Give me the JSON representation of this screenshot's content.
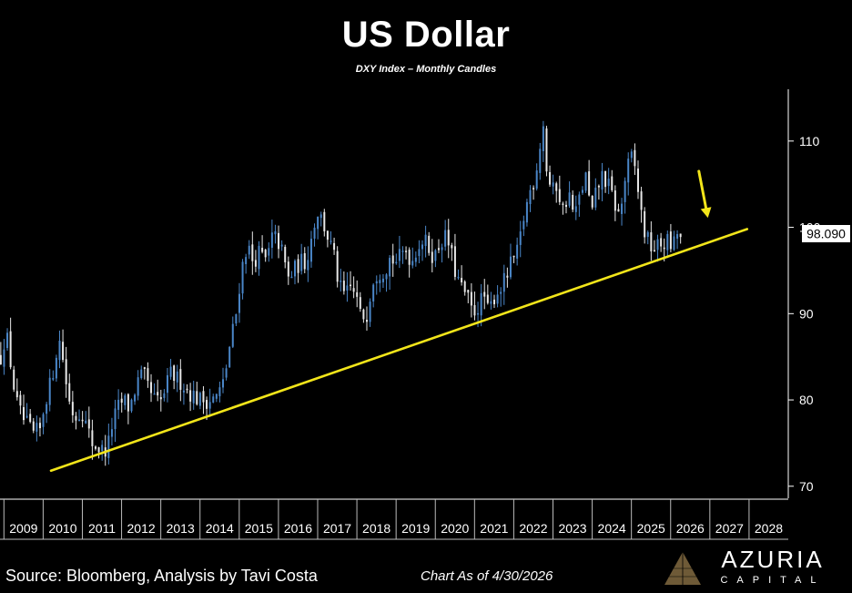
{
  "header": {
    "title": "US Dollar",
    "subtitle": "DXY Index – Monthly Candles"
  },
  "footer": {
    "source": "Source: Bloomberg, Analysis by Tavi Costa",
    "as_of": "Chart As of 4/30/2026"
  },
  "brand": {
    "name": "AZURIA",
    "tagline": "CAPITAL"
  },
  "chart_data": {
    "type": "candlestick",
    "x_tick_labels": [
      "2009",
      "2010",
      "2011",
      "2012",
      "2013",
      "2014",
      "2015",
      "2016",
      "2017",
      "2018",
      "2019",
      "2020",
      "2021",
      "2022",
      "2023",
      "2024",
      "2025",
      "2026",
      "2027",
      "2028"
    ],
    "y_ticks": [
      70,
      80,
      90,
      100,
      110
    ],
    "ylim": [
      68.5,
      116
    ],
    "xlim": [
      2008.9,
      2029.0
    ],
    "last_price": "98.090",
    "colors": {
      "up": "#4a86c8",
      "down": "#e8e8e8",
      "trendline": "#f2e51a",
      "arrow": "#f2e51a",
      "background": "#000000"
    },
    "close_path": [
      [
        2008.92,
        85
      ],
      [
        2009.05,
        88
      ],
      [
        2009.18,
        84
      ],
      [
        2009.3,
        80
      ],
      [
        2009.45,
        78
      ],
      [
        2009.6,
        77
      ],
      [
        2009.75,
        76
      ],
      [
        2009.92,
        76.5
      ],
      [
        2010.05,
        80
      ],
      [
        2010.2,
        82
      ],
      [
        2010.35,
        86
      ],
      [
        2010.45,
        87
      ],
      [
        2010.55,
        83
      ],
      [
        2010.7,
        79
      ],
      [
        2010.85,
        78
      ],
      [
        2010.98,
        79
      ],
      [
        2011.1,
        77
      ],
      [
        2011.25,
        75
      ],
      [
        2011.4,
        74.5
      ],
      [
        2011.55,
        74
      ],
      [
        2011.65,
        74.5
      ],
      [
        2011.75,
        77
      ],
      [
        2011.9,
        79
      ],
      [
        2012.05,
        80
      ],
      [
        2012.2,
        79
      ],
      [
        2012.4,
        82
      ],
      [
        2012.55,
        83
      ],
      [
        2012.7,
        81
      ],
      [
        2012.85,
        80
      ],
      [
        2012.98,
        79.5
      ],
      [
        2013.1,
        81
      ],
      [
        2013.25,
        83
      ],
      [
        2013.4,
        82.5
      ],
      [
        2013.55,
        82
      ],
      [
        2013.7,
        81
      ],
      [
        2013.85,
        80.5
      ],
      [
        2013.98,
        80
      ],
      [
        2014.1,
        80
      ],
      [
        2014.3,
        80
      ],
      [
        2014.45,
        80.5
      ],
      [
        2014.6,
        82
      ],
      [
        2014.75,
        86
      ],
      [
        2014.92,
        90
      ],
      [
        2015.05,
        95
      ],
      [
        2015.2,
        98
      ],
      [
        2015.35,
        96
      ],
      [
        2015.5,
        97
      ],
      [
        2015.7,
        96
      ],
      [
        2015.85,
        99
      ],
      [
        2015.98,
        98.5
      ],
      [
        2016.1,
        97
      ],
      [
        2016.25,
        94
      ],
      [
        2016.4,
        95
      ],
      [
        2016.55,
        96
      ],
      [
        2016.7,
        96
      ],
      [
        2016.85,
        99
      ],
      [
        2016.98,
        102
      ],
      [
        2017.1,
        101
      ],
      [
        2017.25,
        99
      ],
      [
        2017.4,
        97
      ],
      [
        2017.55,
        93
      ],
      [
        2017.7,
        92
      ],
      [
        2017.85,
        93
      ],
      [
        2017.98,
        92
      ],
      [
        2018.1,
        89.5
      ],
      [
        2018.25,
        90
      ],
      [
        2018.4,
        94
      ],
      [
        2018.55,
        95
      ],
      [
        2018.7,
        95
      ],
      [
        2018.85,
        96.5
      ],
      [
        2018.98,
        96
      ],
      [
        2019.1,
        96.5
      ],
      [
        2019.25,
        97.5
      ],
      [
        2019.4,
        96
      ],
      [
        2019.55,
        98
      ],
      [
        2019.7,
        98.5
      ],
      [
        2019.85,
        97.5
      ],
      [
        2019.98,
        96.5
      ],
      [
        2020.1,
        98
      ],
      [
        2020.22,
        99
      ],
      [
        2020.35,
        98
      ],
      [
        2020.5,
        95
      ],
      [
        2020.65,
        93
      ],
      [
        2020.8,
        92
      ],
      [
        2020.95,
        90
      ],
      [
        2021.1,
        91
      ],
      [
        2021.25,
        92
      ],
      [
        2021.35,
        90
      ],
      [
        2021.5,
        92
      ],
      [
        2021.65,
        93
      ],
      [
        2021.8,
        94
      ],
      [
        2021.95,
        96
      ],
      [
        2022.1,
        97
      ],
      [
        2022.25,
        101
      ],
      [
        2022.4,
        104
      ],
      [
        2022.55,
        106
      ],
      [
        2022.68,
        110
      ],
      [
        2022.75,
        112
      ],
      [
        2022.85,
        106
      ],
      [
        2022.98,
        104
      ],
      [
        2023.1,
        105
      ],
      [
        2023.25,
        102
      ],
      [
        2023.4,
        104
      ],
      [
        2023.55,
        101
      ],
      [
        2023.7,
        104
      ],
      [
        2023.85,
        106
      ],
      [
        2023.98,
        101
      ],
      [
        2024.1,
        104
      ],
      [
        2024.25,
        106
      ],
      [
        2024.4,
        105
      ],
      [
        2024.55,
        103
      ],
      [
        2024.7,
        101
      ],
      [
        2024.85,
        106
      ],
      [
        2024.98,
        108
      ],
      [
        2025.05,
        108
      ],
      [
        2025.18,
        104
      ],
      [
        2025.3,
        100
      ],
      [
        2025.45,
        98
      ],
      [
        2025.6,
        97.5
      ],
      [
        2025.75,
        98
      ],
      [
        2025.9,
        98.5
      ],
      [
        2026.05,
        97.5
      ],
      [
        2026.18,
        99.5
      ],
      [
        2026.3,
        98.09
      ]
    ],
    "trendline": {
      "x1": 2010.2,
      "y1": 71.8,
      "x2": 2027.95,
      "y2": 99.8
    },
    "arrow": {
      "from": [
        2026.72,
        106.5
      ],
      "to": [
        2026.95,
        101.1
      ]
    }
  }
}
